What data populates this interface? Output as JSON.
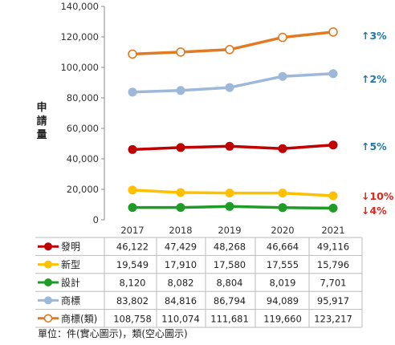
{
  "chart_data": {
    "type": "line",
    "ylabel": "申請量",
    "ylim": [
      0,
      140000
    ],
    "yticks": [
      "0",
      "20,000",
      "40,000",
      "60,000",
      "80,000",
      "100,000",
      "120,000",
      "140,000"
    ],
    "ytick_values": [
      0,
      20000,
      40000,
      60000,
      80000,
      100000,
      120000,
      140000
    ],
    "categories": [
      "2017",
      "2018",
      "2019",
      "2020",
      "2021"
    ],
    "series": [
      {
        "name": "發明",
        "color": "#c00000",
        "marker": "filled",
        "values": [
          46122,
          47429,
          48268,
          46664,
          49116
        ],
        "labels": [
          "46,122",
          "47,429",
          "48,268",
          "46,664",
          "49,116"
        ],
        "change": "↑5%",
        "change_color": "#1f77a8"
      },
      {
        "name": "新型",
        "color": "#ffc000",
        "marker": "filled",
        "values": [
          19549,
          17910,
          17580,
          17555,
          15796
        ],
        "labels": [
          "19,549",
          "17,910",
          "17,580",
          "17,555",
          "15,796"
        ],
        "change": "↓10%",
        "change_color": "#e0241b"
      },
      {
        "name": "設計",
        "color": "#1e9c27",
        "marker": "filled",
        "values": [
          8120,
          8082,
          8804,
          8019,
          7701
        ],
        "labels": [
          "8,120",
          "8,082",
          "8,804",
          "8,019",
          "7,701"
        ],
        "change": "↓4%",
        "change_color": "#e0241b"
      },
      {
        "name": "商標",
        "color": "#9db8d9",
        "marker": "filled",
        "values": [
          83802,
          84816,
          86794,
          94089,
          95917
        ],
        "labels": [
          "83,802",
          "84,816",
          "86,794",
          "94,089",
          "95,917"
        ],
        "change": "↑2%",
        "change_color": "#1f77a8"
      },
      {
        "name": "商標(類)",
        "color": "#e07b24",
        "marker": "hollow",
        "values": [
          108758,
          110074,
          111681,
          119660,
          123217
        ],
        "labels": [
          "108,758",
          "110,074",
          "111,681",
          "119,660",
          "123,217"
        ],
        "change": "↑3%",
        "change_color": "#1f77a8"
      }
    ],
    "legend": "table-below",
    "grid": false
  },
  "footnote": "單位：件(實心圖示)，類(空心圖示)"
}
